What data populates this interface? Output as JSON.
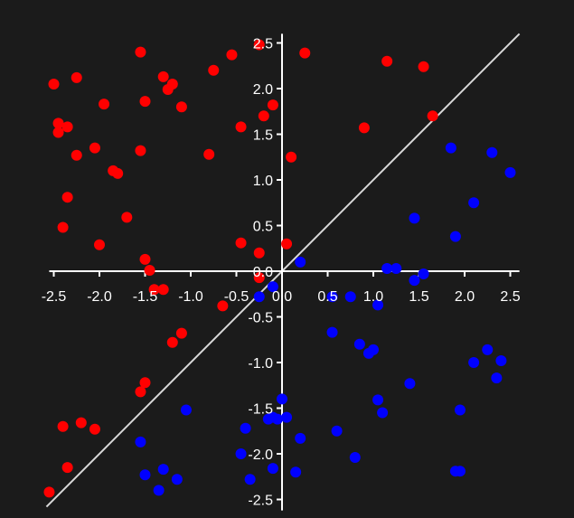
{
  "colors": {
    "background": "#1b1b1b",
    "axis": "#ffffff",
    "diagonal": "#d9d9d9",
    "above": "#ff0000",
    "below": "#0000ff"
  },
  "chart_data": {
    "type": "scatter",
    "title": "",
    "xlabel": "",
    "ylabel": "",
    "xlim": [
      -2.5,
      2.5
    ],
    "ylim": [
      -2.5,
      2.5
    ],
    "grid": false,
    "axes_through_origin": true,
    "reference_line": {
      "slope": 1,
      "intercept": 0
    },
    "x_ticks": [
      {
        "value": -2.5,
        "label": "-2.5"
      },
      {
        "value": -2.0,
        "label": "-2.0"
      },
      {
        "value": -1.5,
        "label": "-1.5"
      },
      {
        "value": -1.0,
        "label": "-1.0"
      },
      {
        "value": -0.5,
        "label": "-0.5"
      },
      {
        "value": 0.0,
        "label": "0.0"
      },
      {
        "value": 0.5,
        "label": "0.5"
      },
      {
        "value": 1.0,
        "label": "1.0"
      },
      {
        "value": 1.5,
        "label": "1.5"
      },
      {
        "value": 2.0,
        "label": "2.0"
      },
      {
        "value": 2.5,
        "label": "2.5"
      }
    ],
    "y_ticks": [
      {
        "value": 2.5,
        "label": "2.5"
      },
      {
        "value": 2.0,
        "label": "2.0"
      },
      {
        "value": 1.5,
        "label": "1.5"
      },
      {
        "value": 1.0,
        "label": "1.0"
      },
      {
        "value": 0.5,
        "label": "0.5"
      },
      {
        "value": 0.0,
        "label": "0.0"
      },
      {
        "value": -0.5,
        "label": "-0.5"
      },
      {
        "value": -1.0,
        "label": "-1.0"
      },
      {
        "value": -1.5,
        "label": "-1.5"
      },
      {
        "value": -2.0,
        "label": "-2.0"
      },
      {
        "value": -2.5,
        "label": "-2.5"
      }
    ],
    "series": [
      {
        "color": "#ff0000",
        "points": [
          [
            -2.5,
            2.05
          ],
          [
            -2.25,
            2.12
          ],
          [
            -2.45,
            1.62
          ],
          [
            -2.45,
            1.52
          ],
          [
            -2.35,
            1.58
          ],
          [
            -2.05,
            1.35
          ],
          [
            -2.25,
            1.27
          ],
          [
            -1.95,
            1.83
          ],
          [
            -1.55,
            2.4
          ],
          [
            -1.5,
            1.86
          ],
          [
            -1.55,
            1.32
          ],
          [
            -1.3,
            2.13
          ],
          [
            -1.2,
            2.05
          ],
          [
            -1.25,
            1.99
          ],
          [
            -1.1,
            1.8
          ],
          [
            -0.75,
            2.2
          ],
          [
            -0.55,
            2.37
          ],
          [
            -0.25,
            2.48
          ],
          [
            -0.8,
            1.28
          ],
          [
            -0.45,
            1.58
          ],
          [
            -0.2,
            1.7
          ],
          [
            -0.1,
            1.82
          ],
          [
            -1.85,
            1.1
          ],
          [
            -1.8,
            1.07
          ],
          [
            -2.35,
            0.81
          ],
          [
            -2.4,
            0.48
          ],
          [
            -2.0,
            0.29
          ],
          [
            -1.7,
            0.59
          ],
          [
            -1.5,
            0.13
          ],
          [
            -1.45,
            0.01
          ],
          [
            -1.4,
            -0.2
          ],
          [
            -1.3,
            -0.2
          ],
          [
            -0.45,
            0.31
          ],
          [
            -0.25,
            0.2
          ],
          [
            0.05,
            0.3
          ],
          [
            0.1,
            1.25
          ],
          [
            -0.25,
            -0.07
          ],
          [
            -0.65,
            -0.38
          ],
          [
            -1.2,
            -0.78
          ],
          [
            -1.1,
            -0.68
          ],
          [
            -1.55,
            -1.32
          ],
          [
            -1.5,
            -1.22
          ],
          [
            -2.4,
            -1.7
          ],
          [
            -2.2,
            -1.66
          ],
          [
            -2.05,
            -1.73
          ],
          [
            -2.35,
            -2.15
          ],
          [
            -2.55,
            -2.42
          ],
          [
            0.25,
            2.39
          ],
          [
            1.15,
            2.3
          ],
          [
            1.55,
            2.24
          ],
          [
            0.9,
            1.57
          ],
          [
            1.65,
            1.7
          ]
        ]
      },
      {
        "color": "#0000ff",
        "points": [
          [
            0.2,
            0.1
          ],
          [
            -0.1,
            -0.17
          ],
          [
            -0.25,
            -0.28
          ],
          [
            0.55,
            -0.28
          ],
          [
            0.75,
            -0.28
          ],
          [
            1.05,
            -0.37
          ],
          [
            1.15,
            0.03
          ],
          [
            1.25,
            0.03
          ],
          [
            1.45,
            -0.1
          ],
          [
            1.55,
            -0.03
          ],
          [
            1.45,
            0.58
          ],
          [
            1.9,
            0.38
          ],
          [
            2.1,
            0.75
          ],
          [
            1.85,
            1.35
          ],
          [
            2.3,
            1.3
          ],
          [
            2.5,
            1.08
          ],
          [
            0.55,
            -0.67
          ],
          [
            0.85,
            -0.8
          ],
          [
            0.95,
            -0.9
          ],
          [
            1.0,
            -0.86
          ],
          [
            1.4,
            -1.23
          ],
          [
            2.1,
            -1.0
          ],
          [
            2.25,
            -0.86
          ],
          [
            2.4,
            -0.98
          ],
          [
            2.35,
            -1.17
          ],
          [
            1.05,
            -1.41
          ],
          [
            1.1,
            -1.55
          ],
          [
            1.95,
            -1.52
          ],
          [
            0.6,
            -1.75
          ],
          [
            0.8,
            -2.04
          ],
          [
            1.95,
            -2.19
          ],
          [
            1.9,
            -2.19
          ],
          [
            0.05,
            -1.6
          ],
          [
            -0.05,
            -1.62
          ],
          [
            -0.1,
            -1.6
          ],
          [
            -0.15,
            -1.62
          ],
          [
            0.0,
            -1.4
          ],
          [
            0.2,
            -1.83
          ],
          [
            -0.1,
            -2.16
          ],
          [
            0.15,
            -2.2
          ],
          [
            -0.4,
            -1.72
          ],
          [
            -0.45,
            -2.0
          ],
          [
            -0.35,
            -2.28
          ],
          [
            -1.05,
            -1.52
          ],
          [
            -1.55,
            -1.87
          ],
          [
            -1.5,
            -2.23
          ],
          [
            -1.3,
            -2.17
          ],
          [
            -1.15,
            -2.28
          ],
          [
            -1.35,
            -2.4
          ]
        ]
      }
    ]
  }
}
